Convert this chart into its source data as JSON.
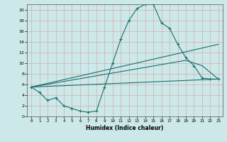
{
  "xlabel": "Humidex (Indice chaleur)",
  "background_color": "#cce8e8",
  "line_color": "#1a6e6e",
  "xlim": [
    -0.5,
    23.5
  ],
  "ylim": [
    0,
    21
  ],
  "xticks": [
    0,
    1,
    2,
    3,
    4,
    5,
    6,
    7,
    8,
    9,
    10,
    11,
    12,
    13,
    14,
    15,
    16,
    17,
    18,
    19,
    20,
    21,
    22,
    23
  ],
  "yticks": [
    0,
    2,
    4,
    6,
    8,
    10,
    12,
    14,
    16,
    18,
    20
  ],
  "line1_x": [
    0,
    1,
    2,
    3,
    4,
    5,
    6,
    7,
    8,
    9,
    10,
    11,
    12,
    13,
    14,
    15,
    16,
    17,
    18,
    19,
    20,
    21,
    22,
    23
  ],
  "line1_y": [
    5.5,
    4.5,
    3.0,
    3.5,
    2.0,
    1.5,
    1.0,
    0.8,
    1.0,
    5.5,
    10.0,
    14.5,
    18.0,
    20.2,
    21.0,
    21.0,
    17.5,
    16.5,
    13.5,
    11.0,
    9.5,
    7.2,
    7.0,
    7.0
  ],
  "line2_x": [
    0,
    23
  ],
  "line2_y": [
    5.5,
    7.0
  ],
  "line3_x": [
    0,
    19,
    21,
    23
  ],
  "line3_y": [
    5.5,
    10.5,
    9.5,
    7.0
  ],
  "line4_x": [
    0,
    23
  ],
  "line4_y": [
    5.5,
    13.5
  ]
}
